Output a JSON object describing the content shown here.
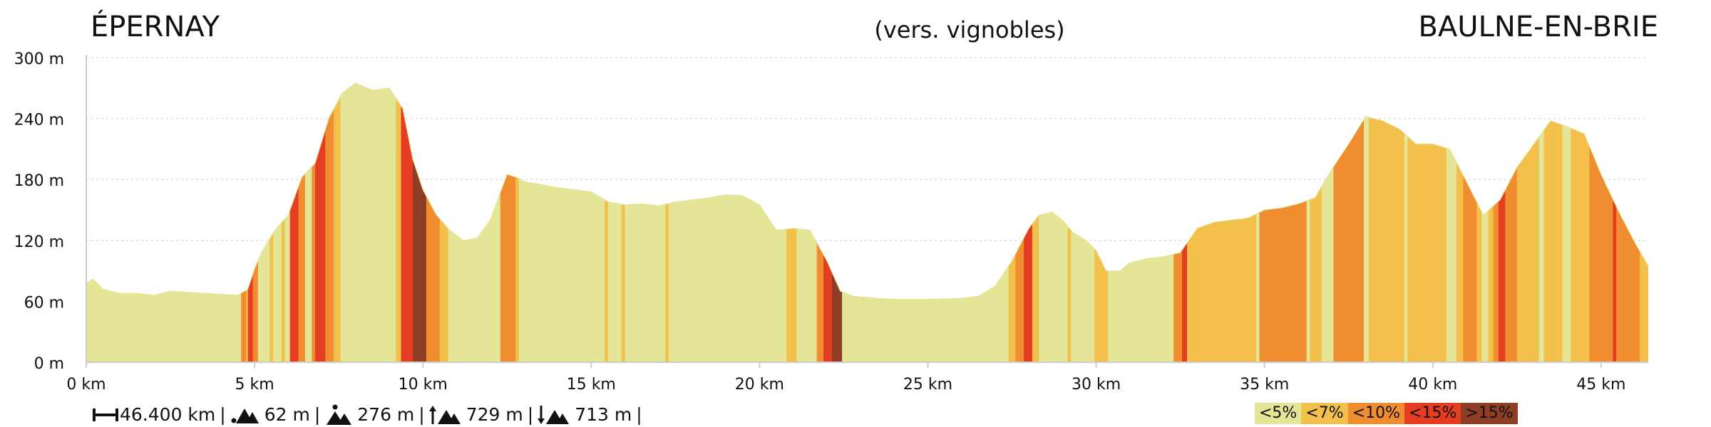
{
  "header": {
    "start": "ÉPERNAY",
    "end": "BAULNE-EN-BRIE",
    "note": "(vers. vignobles)"
  },
  "chart_data": {
    "type": "area",
    "title": "",
    "xlabel": "",
    "ylabel": "",
    "x_unit": "km",
    "y_unit": "m",
    "xlim": [
      0,
      46.4
    ],
    "ylim": [
      0,
      300
    ],
    "x_ticks": [
      0,
      5,
      10,
      15,
      20,
      25,
      30,
      35,
      40,
      45
    ],
    "y_ticks": [
      0,
      60,
      120,
      180,
      240,
      300
    ],
    "x_tick_labels": [
      "0 km",
      "5 km",
      "10 km",
      "15 km",
      "20 km",
      "25 km",
      "30 km",
      "35 km",
      "40 km",
      "45 km"
    ],
    "y_tick_labels": [
      "0 m",
      "60 m",
      "120 m",
      "180 m",
      "240 m",
      "300 m"
    ],
    "grid": "horizontal dotted",
    "series": [
      {
        "x": [
          0,
          0.2,
          0.5,
          1,
          1.5,
          2,
          2.5,
          3,
          3.5,
          4,
          4.5,
          4.8,
          5,
          5.2,
          5.6,
          6,
          6.4,
          6.8,
          7.2,
          7.6,
          8,
          8.5,
          9,
          9.4,
          9.7,
          10,
          10.4,
          10.8,
          11.2,
          11.6,
          12,
          12.5,
          12.8,
          13,
          13.5,
          14,
          14.5,
          15,
          15.5,
          16,
          16.5,
          17,
          17.5,
          18,
          18.5,
          19,
          19.5,
          20,
          20.5,
          21,
          21.5,
          22,
          22.4,
          22.8,
          23.5,
          24,
          25,
          26,
          26.5,
          27,
          27.5,
          28,
          28.3,
          28.7,
          29,
          29.3,
          29.7,
          30,
          30.3,
          30.7,
          31,
          31.5,
          32,
          32.5,
          33,
          33.5,
          34,
          34.5,
          35,
          35.5,
          36,
          36.5,
          37,
          37.5,
          38,
          38.5,
          39,
          39.5,
          40,
          40.5,
          41,
          41.5,
          42,
          42.5,
          43,
          43.5,
          44,
          44.5,
          45,
          45.5,
          46,
          46.4
        ],
        "y": [
          78,
          82,
          72,
          68,
          68,
          66,
          70,
          69,
          68,
          67,
          66,
          72,
          92,
          108,
          130,
          145,
          182,
          196,
          240,
          265,
          275,
          268,
          270,
          250,
          200,
          170,
          145,
          130,
          120,
          122,
          140,
          185,
          182,
          178,
          175,
          172,
          170,
          168,
          158,
          155,
          156,
          154,
          158,
          160,
          162,
          165,
          164,
          155,
          130,
          132,
          130,
          100,
          70,
          65,
          63,
          62,
          62,
          63,
          65,
          75,
          100,
          132,
          145,
          148,
          140,
          128,
          120,
          110,
          90,
          90,
          98,
          102,
          104,
          108,
          132,
          138,
          140,
          142,
          150,
          152,
          156,
          162,
          190,
          215,
          242,
          238,
          230,
          215,
          215,
          210,
          178,
          145,
          160,
          192,
          215,
          238,
          232,
          225,
          185,
          150,
          118,
          95
        ]
      }
    ],
    "gradient_breaks": [
      0,
      4.6,
      4.75,
      4.8,
      4.95,
      5.1,
      5.45,
      5.55,
      5.8,
      5.9,
      6.05,
      6.3,
      6.5,
      6.7,
      6.8,
      7.1,
      7.35,
      7.55,
      9.2,
      9.35,
      9.7,
      10.1,
      10.5,
      10.75,
      12.3,
      12.75,
      12.85,
      15.4,
      15.5,
      15.9,
      16,
      17.2,
      17.3,
      20.8,
      21.1,
      21.7,
      21.9,
      22.15,
      22.45,
      27.4,
      27.6,
      27.85,
      28.1,
      28.3,
      29.15,
      29.25,
      29.95,
      30.35,
      32.3,
      32.55,
      32.7,
      34.75,
      34.85,
      36.25,
      36.35,
      36.7,
      37.05,
      37.95,
      38.1,
      39.15,
      39.25,
      40.4,
      40.7,
      40.9,
      41.3,
      41.45,
      41.65,
      41.8,
      41.95,
      42.15,
      42.5,
      43.15,
      43.3,
      43.85,
      44.1,
      44.65,
      45.35,
      45.45,
      46.15,
      46.4
    ],
    "gradient_classes": [
      0,
      2,
      1,
      3,
      2,
      0,
      1,
      0,
      1,
      0,
      3,
      2,
      0,
      2,
      3,
      2,
      1,
      0,
      1,
      3,
      4,
      2,
      1,
      0,
      2,
      1,
      0,
      1,
      0,
      1,
      0,
      1,
      0,
      1,
      0,
      2,
      3,
      4,
      0,
      1,
      2,
      3,
      1,
      0,
      1,
      0,
      1,
      0,
      2,
      3,
      1,
      0,
      2,
      0,
      1,
      0,
      2,
      0,
      1,
      0,
      1,
      0,
      1,
      2,
      1,
      0,
      1,
      2,
      3,
      2,
      1,
      0,
      1,
      0,
      1,
      2,
      3,
      2,
      1,
      0
    ],
    "legend": [
      {
        "label": "<5%",
        "color": "#e5e598"
      },
      {
        "label": "<7%",
        "color": "#f2c04b"
      },
      {
        "label": "<10%",
        "color": "#f08d31"
      },
      {
        "label": "<15%",
        "color": "#e43d22"
      },
      {
        "label": ">15%",
        "color": "#8e3e25"
      }
    ],
    "legend_placement": "bottom-right"
  },
  "stats": {
    "distance": "46.400 km",
    "min_alt": "62 m",
    "max_alt": "276 m",
    "ascent": "729 m",
    "descent": "713 m",
    "separator": "|"
  },
  "colors": {
    "axis": "#cccccc",
    "grid": "#dddddd"
  }
}
